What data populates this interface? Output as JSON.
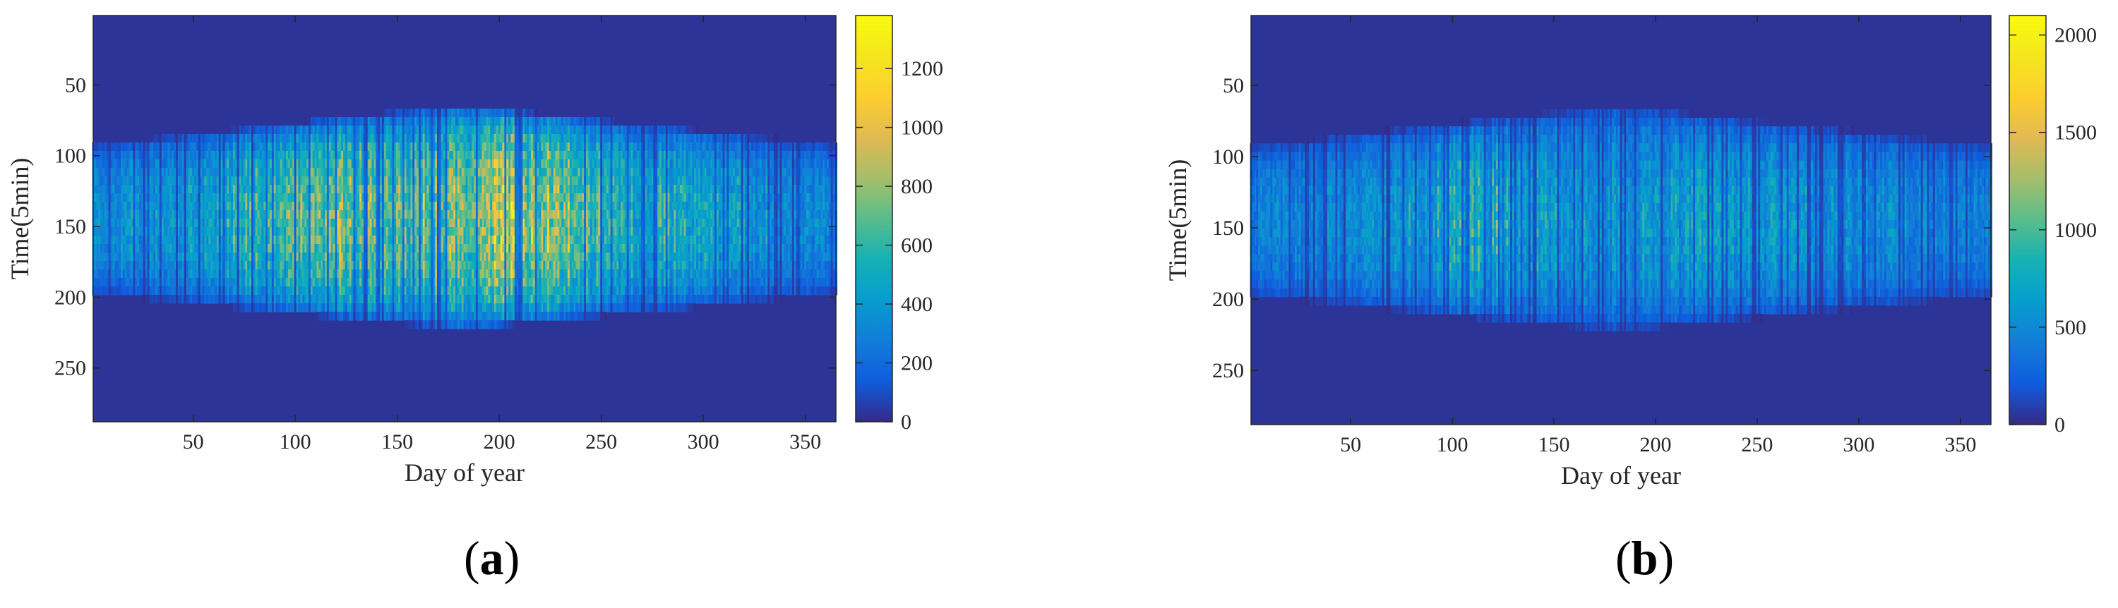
{
  "chart_data": [
    {
      "type": "heatmap",
      "panel_label": "a",
      "xlabel": "Day of year",
      "ylabel": "Time(5min)",
      "xlim": [
        1,
        365
      ],
      "ylim": [
        1,
        288
      ],
      "y_reversed": true,
      "xticks": [
        50,
        100,
        150,
        200,
        250,
        300,
        350
      ],
      "yticks": [
        50,
        100,
        150,
        200,
        250
      ],
      "colorbar": {
        "min": 0,
        "max": 1380,
        "ticks": [
          0,
          200,
          400,
          600,
          800,
          1000,
          1200
        ]
      },
      "colormap": "parula",
      "day_peak_values": [
        {
          "day": 1,
          "value": 420
        },
        {
          "day": 30,
          "value": 500
        },
        {
          "day": 60,
          "value": 600
        },
        {
          "day": 90,
          "value": 820
        },
        {
          "day": 120,
          "value": 900
        },
        {
          "day": 150,
          "value": 880
        },
        {
          "day": 180,
          "value": 950
        },
        {
          "day": 200,
          "value": 1150
        },
        {
          "day": 230,
          "value": 980
        },
        {
          "day": 260,
          "value": 700
        },
        {
          "day": 300,
          "value": 620
        },
        {
          "day": 330,
          "value": 500
        },
        {
          "day": 365,
          "value": 420
        }
      ],
      "active_time_range": [
        {
          "day": 1,
          "start": 100,
          "end": 190
        },
        {
          "day": 180,
          "start": 72,
          "end": 215
        },
        {
          "day": 365,
          "start": 100,
          "end": 190
        }
      ]
    },
    {
      "type": "heatmap",
      "panel_label": "b",
      "xlabel": "Day of year",
      "ylabel": "Time(5min)",
      "xlim": [
        1,
        365
      ],
      "ylim": [
        1,
        288
      ],
      "y_reversed": true,
      "xticks": [
        50,
        100,
        150,
        200,
        250,
        300,
        350
      ],
      "yticks": [
        50,
        100,
        150,
        200,
        250
      ],
      "colorbar": {
        "min": 0,
        "max": 2100,
        "ticks": [
          0,
          500,
          1000,
          1500,
          2000
        ]
      },
      "colormap": "parula",
      "day_peak_values": [
        {
          "day": 1,
          "value": 550
        },
        {
          "day": 60,
          "value": 650
        },
        {
          "day": 115,
          "value": 1100
        },
        {
          "day": 150,
          "value": 750
        },
        {
          "day": 200,
          "value": 800
        },
        {
          "day": 250,
          "value": 800
        },
        {
          "day": 300,
          "value": 650
        },
        {
          "day": 365,
          "value": 550
        }
      ],
      "active_time_range": [
        {
          "day": 1,
          "start": 100,
          "end": 190
        },
        {
          "day": 180,
          "start": 72,
          "end": 215
        },
        {
          "day": 365,
          "start": 100,
          "end": 190
        }
      ]
    }
  ]
}
